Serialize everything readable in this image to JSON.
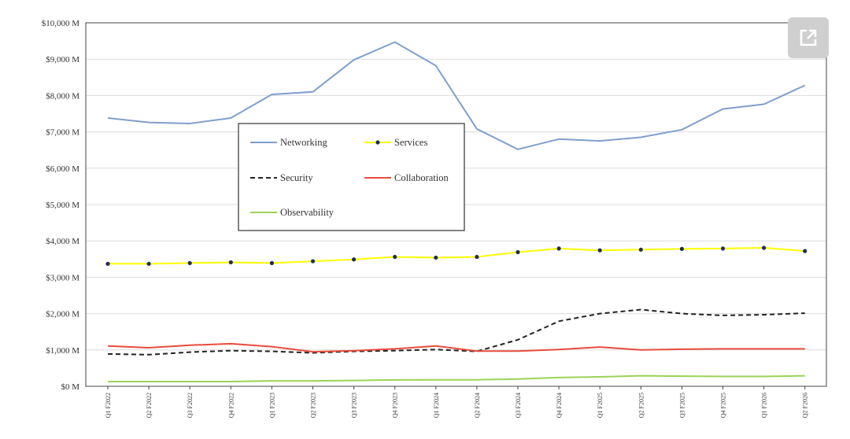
{
  "chart_data": {
    "type": "line",
    "categories": [
      "Q1 F2022",
      "Q2 F2022",
      "Q3 F2022",
      "Q4 F2022",
      "Q1 F2023",
      "Q2 F2023",
      "Q3 F2023",
      "Q4 F2023",
      "Q1 F2024",
      "Q2 F2024",
      "Q3 F2024",
      "Q4 F2024",
      "Q1 F2025",
      "Q2 F2025",
      "Q3 F2025",
      "Q4 F2025",
      "Q1 F2026",
      "Q2 F2026"
    ],
    "y_ticks": [
      "$0 M",
      "$1,000 M",
      "$2,000 M",
      "$3,000 M",
      "$4,000 M",
      "$5,000 M",
      "$6,000 M",
      "$7,000 M",
      "$8,000 M",
      "$9,000 M",
      "$10,000 M"
    ],
    "ylim": [
      0,
      10000
    ],
    "grid": true,
    "legend_position": "inside-left",
    "series": [
      {
        "name": "Networking",
        "color": "#7F9FCC",
        "style": "solid",
        "marker": "none",
        "values": [
          7380,
          7260,
          7230,
          7380,
          8030,
          8100,
          8980,
          9470,
          8820,
          7080,
          6520,
          6800,
          6750,
          6850,
          7060,
          7630,
          7760,
          8280
        ]
      },
      {
        "name": "Services",
        "color": "#FFFF00",
        "style": "solid",
        "marker": "dot",
        "values": [
          3370,
          3370,
          3390,
          3410,
          3390,
          3440,
          3490,
          3560,
          3540,
          3560,
          3690,
          3790,
          3740,
          3760,
          3780,
          3790,
          3810,
          3720
        ]
      },
      {
        "name": "Security",
        "color": "#222222",
        "style": "dashed",
        "marker": "none",
        "values": [
          890,
          870,
          940,
          980,
          960,
          920,
          960,
          980,
          1010,
          960,
          1280,
          1790,
          2000,
          2110,
          2000,
          1950,
          1970,
          2010
        ]
      },
      {
        "name": "Collaboration",
        "color": "#E84C3D",
        "style": "solid",
        "marker": "none",
        "values": [
          1110,
          1060,
          1130,
          1170,
          1090,
          950,
          980,
          1030,
          1110,
          970,
          970,
          1010,
          1080,
          1000,
          1020,
          1030,
          1030,
          1030
        ]
      },
      {
        "name": "Observability",
        "color": "#9BD356",
        "style": "solid",
        "marker": "none",
        "values": [
          130,
          130,
          130,
          130,
          150,
          150,
          160,
          175,
          180,
          180,
          200,
          240,
          260,
          290,
          280,
          270,
          270,
          290
        ]
      }
    ]
  },
  "expand_icon": "external-link-icon"
}
